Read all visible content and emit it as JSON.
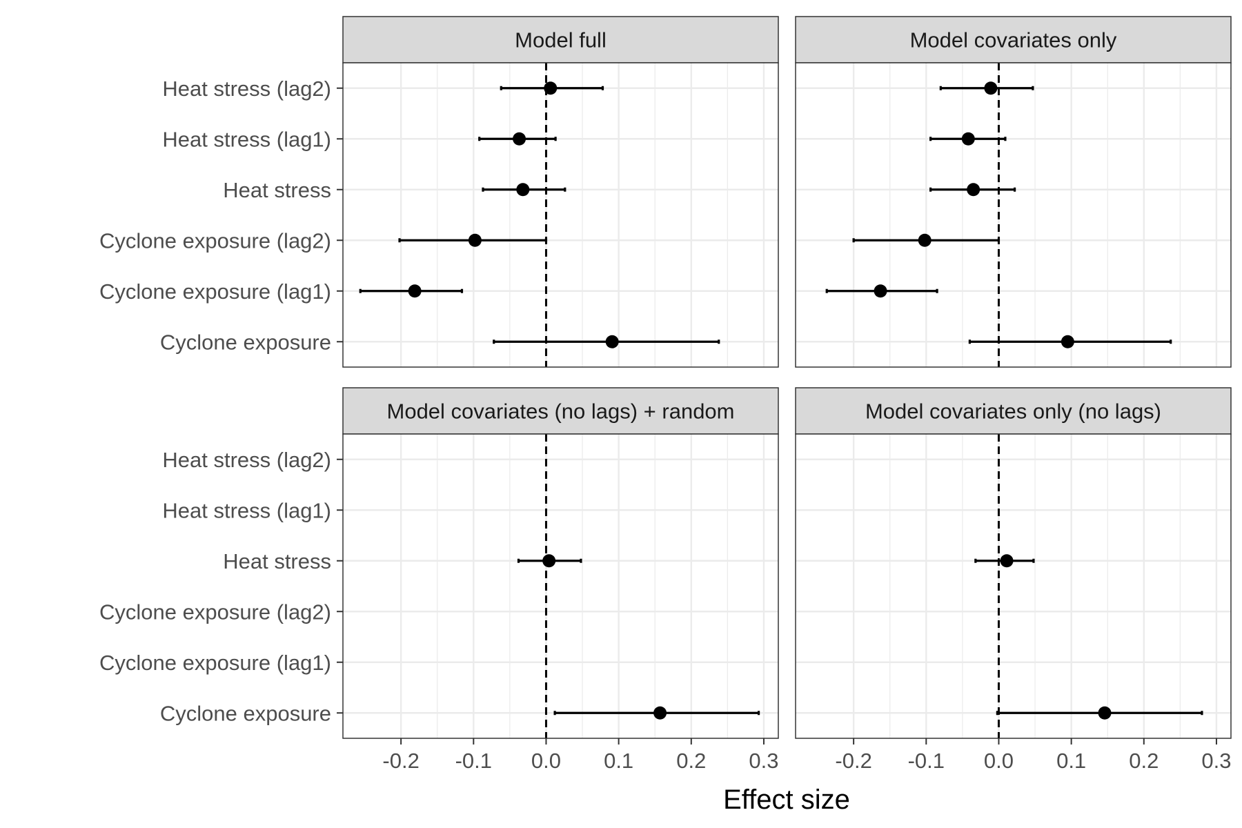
{
  "chart_data": {
    "type": "scatter",
    "style": "faceted forest plot with point estimates and horizontal confidence-interval error bars",
    "xlabel": "Effect size",
    "ylabel": "",
    "xlim": [
      -0.28,
      0.32
    ],
    "x_ticks": [
      -0.2,
      -0.1,
      0.0,
      0.1,
      0.2,
      0.3
    ],
    "x_tick_labels": [
      "-0.2",
      "-0.1",
      "0.0",
      "0.1",
      "0.2",
      "0.3"
    ],
    "categories": [
      "Heat stress (lag2)",
      "Heat stress (lag1)",
      "Heat stress",
      "Cyclone exposure (lag2)",
      "Cyclone exposure (lag1)",
      "Cyclone exposure"
    ],
    "reference_line": {
      "x": 0,
      "style": "dashed"
    },
    "grid": true,
    "legend": "none",
    "colors": {
      "point": "#000000",
      "strip_fill": "#d9d9d9",
      "panel_border": "#333333",
      "grid": "#ebebeb"
    },
    "facets": [
      {
        "title": "Model full",
        "points": [
          {
            "category": "Heat stress (lag2)",
            "estimate": 0.006,
            "lower": -0.062,
            "upper": 0.078
          },
          {
            "category": "Heat stress (lag1)",
            "estimate": -0.037,
            "lower": -0.092,
            "upper": 0.013
          },
          {
            "category": "Heat stress",
            "estimate": -0.032,
            "lower": -0.087,
            "upper": 0.026
          },
          {
            "category": "Cyclone exposure (lag2)",
            "estimate": -0.098,
            "lower": -0.202,
            "upper": 0.0
          },
          {
            "category": "Cyclone exposure (lag1)",
            "estimate": -0.181,
            "lower": -0.256,
            "upper": -0.116
          },
          {
            "category": "Cyclone exposure",
            "estimate": 0.091,
            "lower": -0.072,
            "upper": 0.238
          }
        ]
      },
      {
        "title": "Model covariates only",
        "points": [
          {
            "category": "Heat stress (lag2)",
            "estimate": -0.011,
            "lower": -0.08,
            "upper": 0.047
          },
          {
            "category": "Heat stress (lag1)",
            "estimate": -0.042,
            "lower": -0.094,
            "upper": 0.009
          },
          {
            "category": "Heat stress",
            "estimate": -0.035,
            "lower": -0.094,
            "upper": 0.022
          },
          {
            "category": "Cyclone exposure (lag2)",
            "estimate": -0.102,
            "lower": -0.2,
            "upper": 0.0
          },
          {
            "category": "Cyclone exposure (lag1)",
            "estimate": -0.163,
            "lower": -0.237,
            "upper": -0.085
          },
          {
            "category": "Cyclone exposure",
            "estimate": 0.095,
            "lower": -0.04,
            "upper": 0.237
          }
        ]
      },
      {
        "title": "Model covariates (no lags) + random",
        "points": [
          {
            "category": "Heat stress",
            "estimate": 0.004,
            "lower": -0.038,
            "upper": 0.048
          },
          {
            "category": "Cyclone exposure",
            "estimate": 0.157,
            "lower": 0.012,
            "upper": 0.293
          }
        ]
      },
      {
        "title": "Model covariates only (no lags)",
        "points": [
          {
            "category": "Heat stress",
            "estimate": 0.011,
            "lower": -0.032,
            "upper": 0.048
          },
          {
            "category": "Cyclone exposure",
            "estimate": 0.146,
            "lower": -0.002,
            "upper": 0.28
          }
        ]
      }
    ]
  }
}
